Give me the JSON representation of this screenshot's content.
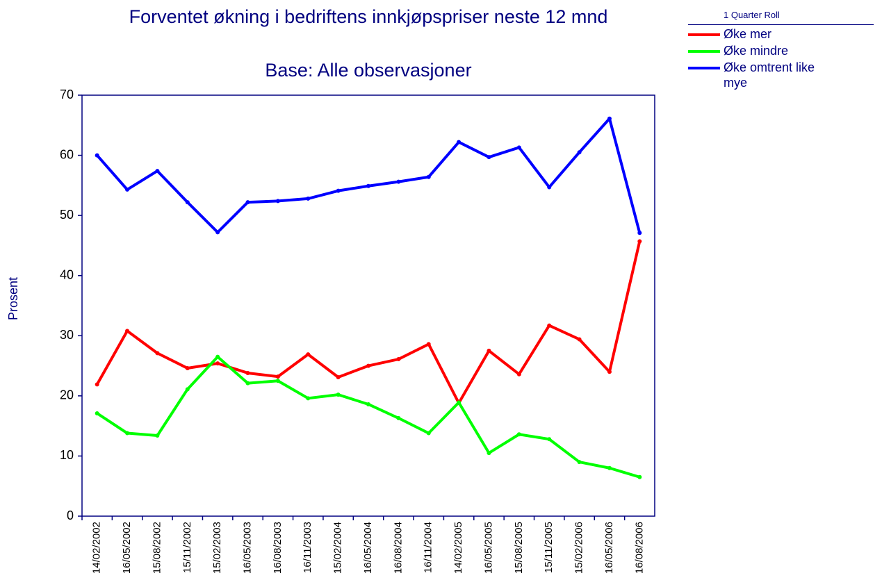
{
  "chart_data": {
    "type": "line",
    "title": "Forventet økning i bedriftens innkjøpspriser neste 12 mnd",
    "subtitle": "Base: Alle observasjoner",
    "y_label": "Prosent",
    "legend_title": "1 Quarter Roll",
    "categories": [
      "14/02/2002",
      "16/05/2002",
      "15/08/2002",
      "15/11/2002",
      "15/02/2003",
      "16/05/2003",
      "16/08/2003",
      "16/11/2003",
      "15/02/2004",
      "16/05/2004",
      "16/08/2004",
      "16/11/2004",
      "14/02/2005",
      "16/05/2005",
      "15/08/2005",
      "15/11/2005",
      "15/02/2006",
      "16/05/2006",
      "16/08/2006"
    ],
    "series": [
      {
        "name": "Øke mer",
        "color": "#ff0000",
        "values": [
          21.9,
          30.8,
          27.1,
          24.6,
          25.4,
          23.8,
          23.2,
          26.9,
          23.1,
          25.0,
          26.1,
          28.6,
          18.8,
          27.5,
          23.6,
          31.7,
          29.4,
          24.0,
          45.7
        ]
      },
      {
        "name": "Øke mindre",
        "color": "#00ff00",
        "values": [
          17.1,
          13.8,
          13.4,
          21.1,
          26.5,
          22.1,
          22.5,
          19.6,
          20.2,
          18.6,
          16.3,
          13.8,
          18.9,
          10.5,
          13.6,
          12.8,
          9.0,
          8.0,
          6.5
        ]
      },
      {
        "name": "Øke omtrent like mye",
        "color": "#0000ff",
        "values": [
          60.0,
          54.3,
          57.4,
          52.2,
          47.2,
          52.2,
          52.4,
          52.8,
          54.1,
          54.9,
          55.6,
          56.4,
          62.2,
          59.7,
          61.3,
          54.7,
          60.5,
          66.1,
          47.1
        ]
      }
    ],
    "ylim": [
      0,
      70
    ],
    "yticks": [
      0,
      10,
      20,
      30,
      40,
      50,
      60,
      70
    ]
  }
}
